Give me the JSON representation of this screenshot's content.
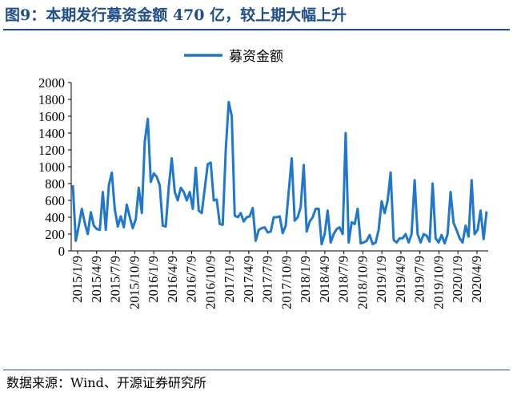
{
  "title": "图9：本期发行募资金额 470 亿，较上期大幅上升",
  "source": "数据来源：Wind、开源证券研究所",
  "chart_data": {
    "type": "line",
    "legend_position": "top",
    "series_color": "#1f77d0",
    "ylim": [
      0,
      2000
    ],
    "yticks": [
      "0",
      "200",
      "400",
      "600",
      "800",
      "1000",
      "1200",
      "1400",
      "1600",
      "1800",
      "2000"
    ],
    "xticks": [
      "2015/1/9",
      "2015/4/9",
      "2015/7/9",
      "2015/10/9",
      "2016/1/9",
      "2016/4/9",
      "2016/7/9",
      "2016/10/9",
      "2017/1/9",
      "2017/4/9",
      "2017/7/9",
      "2017/10/9",
      "2018/1/9",
      "2018/4/9",
      "2018/7/9",
      "2018/10/9",
      "2019/1/9",
      "2019/4/9",
      "2019/7/9",
      "2019/10/9",
      "2020/1/9",
      "2020/4/9"
    ],
    "series": [
      {
        "name": "募资金额",
        "values": [
          780,
          120,
          300,
          500,
          330,
          200,
          460,
          300,
          260,
          250,
          700,
          250,
          780,
          930,
          500,
          290,
          410,
          280,
          550,
          400,
          270,
          380,
          750,
          450,
          1300,
          1570,
          820,
          920,
          880,
          780,
          300,
          290,
          760,
          1100,
          700,
          600,
          750,
          700,
          600,
          700,
          500,
          990,
          480,
          450,
          740,
          1030,
          1050,
          600,
          610,
          320,
          310,
          1200,
          1770,
          1600,
          420,
          400,
          450,
          350,
          400,
          410,
          510,
          120,
          250,
          270,
          280,
          220,
          230,
          400,
          400,
          410,
          210,
          300,
          700,
          1100,
          360,
          400,
          520,
          1020,
          230,
          350,
          400,
          500,
          500,
          80,
          200,
          480,
          100,
          200,
          260,
          280,
          200,
          1400,
          100,
          340,
          320,
          500,
          90,
          100,
          120,
          190,
          80,
          100,
          250,
          590,
          450,
          600,
          930,
          130,
          100,
          150,
          150,
          200,
          100,
          200,
          840,
          200,
          100,
          200,
          180,
          110,
          800,
          150,
          100,
          190,
          90,
          200,
          700,
          330,
          250,
          150,
          100,
          300,
          170,
          840,
          200,
          250,
          480,
          140,
          470
        ]
      }
    ]
  }
}
